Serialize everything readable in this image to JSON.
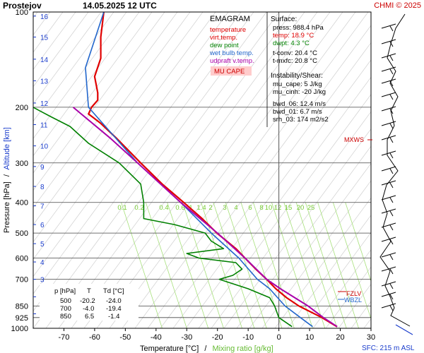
{
  "header": {
    "station": "Prostejov",
    "datetime": "14.05.2025 12 UTC",
    "credit": "CHMI © 2025"
  },
  "axes": {
    "ylabel_pressure": "Pressure [hPa]",
    "ylabel_sep": "/",
    "ylabel_altitude": "Altitude [km]",
    "xlabel_temp": "Temperature [°C]",
    "xlabel_sep": "/",
    "xlabel_mix": "Mixing ratio [g/kg]",
    "sfc": "SFC: 215 m ASL"
  },
  "legend": {
    "title": "EMAGRAM",
    "items": [
      {
        "label": "temperature",
        "color": "#e00000"
      },
      {
        "label": "virt.temp.",
        "color": "#e00000"
      },
      {
        "label": "dew point",
        "color": "#008000"
      },
      {
        "label": "wet bulb temp.",
        "color": "#2266cc"
      },
      {
        "label": "udpraft v.temp.",
        "color": "#aa00aa"
      }
    ],
    "cape_badge": "MU CAPE"
  },
  "info_panel": {
    "surface_title": "Surface:",
    "press": "press: 988.4 hPa",
    "temp": "temp: 18.9 °C",
    "dwpt": "dwpt: 4.3 °C",
    "tconv": "t-conv: 20.4 °C",
    "tmxfc": "t-mxfc: 20.8 °C",
    "instab_title": "Instability/Shear:",
    "mu_cape": "mu_cape: 5 J/kg",
    "mu_cinh": "mu_cinh: -20 J/kg",
    "bwd06": "bwd_06: 12.4 m/s",
    "bwd01": "bwd_01: 6.7 m/s",
    "srh03": "srh_03: 174 m2/s2"
  },
  "level_markers": {
    "mxws": "MXWS",
    "fzl": "FZLV",
    "wbzl": "WBZL"
  },
  "table": {
    "headers": [
      "p [hPa]",
      "T",
      "Td [°C]"
    ],
    "rows": [
      [
        "500",
        "-20.2",
        "-24.0"
      ],
      [
        "700",
        "-4.0",
        "-19.4"
      ],
      [
        "850",
        "6.5",
        "-1.4"
      ]
    ]
  },
  "chart_data": {
    "type": "line",
    "title": "EMAGRAM",
    "xlabel": "Temperature [°C]",
    "ylabel": "Pressure [hPa]",
    "xlim": [
      -80,
      30
    ],
    "ylim": [
      1000,
      100
    ],
    "yscale": "log",
    "pressure_ticks": [
      100,
      200,
      300,
      400,
      500,
      600,
      700,
      850,
      925,
      1000
    ],
    "temp_ticks": [
      -70,
      -60,
      -50,
      -40,
      -30,
      -20,
      -10,
      0,
      10,
      20,
      30
    ],
    "altitude_ticks_km": [
      1,
      2,
      3,
      4,
      5,
      6,
      7,
      8,
      9,
      10,
      11,
      12,
      13,
      14,
      15,
      16
    ],
    "mixing_ratio_labels": [
      "0.1",
      "0.2",
      "0.4",
      "0.6",
      "1",
      "1.4",
      "2",
      "3",
      "4",
      "6",
      "8",
      "10",
      "12",
      "15",
      "20",
      "25"
    ],
    "grid": true,
    "series": [
      {
        "name": "temperature",
        "color": "#e00000",
        "pressure": [
          988,
          925,
          850,
          800,
          750,
          700,
          650,
          600,
          560,
          500,
          450,
          400,
          350,
          300,
          250,
          225,
          210,
          200,
          190,
          180,
          160,
          140,
          120,
          100
        ],
        "values": [
          18.9,
          14,
          6.5,
          2.5,
          -1,
          -4,
          -7.5,
          -11,
          -14,
          -20.2,
          -25,
          -31,
          -38,
          -45,
          -53,
          -58,
          -62,
          -61,
          -59,
          -59,
          -60,
          -58,
          -58,
          -57
        ]
      },
      {
        "name": "dew point",
        "color": "#008000",
        "pressure": [
          988,
          925,
          850,
          800,
          750,
          700,
          680,
          650,
          620,
          600,
          580,
          560,
          530,
          500,
          470,
          450,
          400,
          350,
          300,
          260,
          230,
          215,
          205,
          200
        ],
        "values": [
          4.3,
          0,
          -1.4,
          -3,
          -10,
          -19.4,
          -15,
          -12,
          -14,
          -26,
          -30,
          -18,
          -22,
          -24,
          -34,
          -44,
          -44,
          -45,
          -52,
          -62,
          -68,
          -74,
          -78,
          -80
        ]
      },
      {
        "name": "wet bulb temp.",
        "color": "#2266cc",
        "pressure": [
          988,
          925,
          850,
          750,
          700,
          600,
          500,
          400,
          300,
          200,
          150,
          100
        ],
        "values": [
          11,
          7,
          2,
          -3,
          -7,
          -13,
          -22,
          -32,
          -46,
          -62,
          -63,
          -57
        ]
      },
      {
        "name": "udpraft v.temp.",
        "color": "#aa00aa",
        "pressure": [
          988,
          925,
          850,
          750,
          700,
          600,
          500,
          400,
          300,
          250,
          200
        ],
        "values": [
          19,
          14.5,
          9.5,
          0.5,
          -4,
          -11,
          -20,
          -32,
          -46,
          -55,
          -67
        ]
      }
    ]
  }
}
